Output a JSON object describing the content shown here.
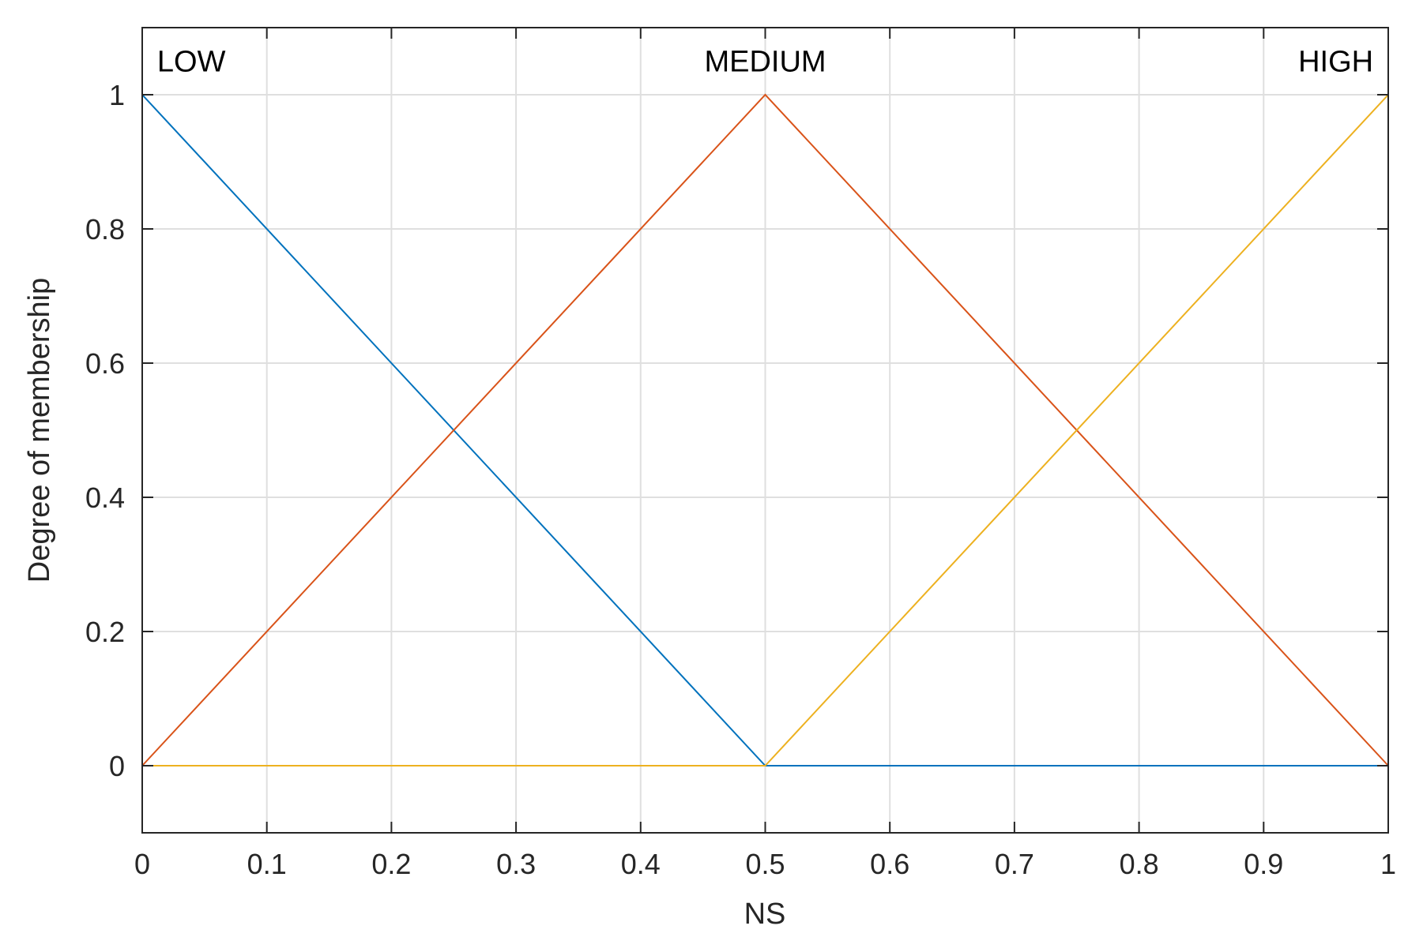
{
  "chart_data": {
    "type": "line",
    "title": "",
    "xlabel": "NS",
    "ylabel": "Degree of membership",
    "xlim": [
      0,
      1
    ],
    "ylim": [
      -0.1,
      1.1
    ],
    "xticks": [
      0,
      0.1,
      0.2,
      0.3,
      0.4,
      0.5,
      0.6,
      0.7,
      0.8,
      0.9,
      1
    ],
    "xtick_labels": [
      "0",
      "0.1",
      "0.2",
      "0.3",
      "0.4",
      "0.5",
      "0.6",
      "0.7",
      "0.8",
      "0.9",
      "1"
    ],
    "yticks": [
      0,
      0.2,
      0.4,
      0.6,
      0.8,
      1
    ],
    "ytick_labels": [
      "0",
      "0.2",
      "0.4",
      "0.6",
      "0.8",
      "1"
    ],
    "grid": true,
    "series": [
      {
        "name": "LOW",
        "color": "#0072BD",
        "x": [
          0,
          0.5,
          1
        ],
        "y": [
          1,
          0,
          0
        ]
      },
      {
        "name": "MEDIUM",
        "color": "#D95319",
        "x": [
          0,
          0.5,
          1
        ],
        "y": [
          0,
          1,
          0
        ]
      },
      {
        "name": "HIGH",
        "color": "#EDB120",
        "x": [
          0,
          0.5,
          1
        ],
        "y": [
          0,
          0,
          1
        ]
      }
    ],
    "annotations": [
      {
        "text": "LOW",
        "x": 0.012,
        "y": 1.05,
        "anchor": "start"
      },
      {
        "text": "MEDIUM",
        "x": 0.5,
        "y": 1.05,
        "anchor": "middle"
      },
      {
        "text": "HIGH",
        "x": 0.988,
        "y": 1.05,
        "anchor": "end"
      }
    ]
  }
}
